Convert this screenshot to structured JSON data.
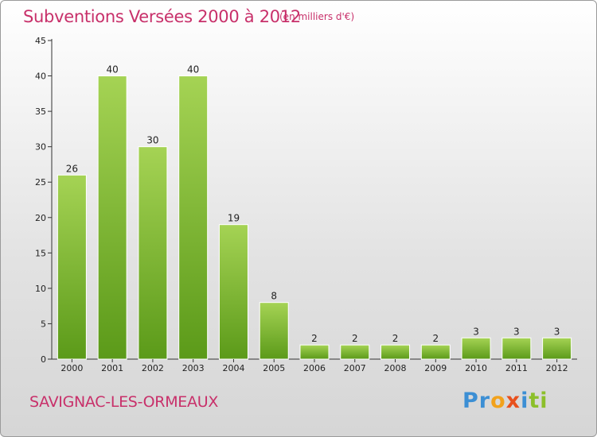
{
  "header": {
    "title": "Subventions Versées 2000 à 2012",
    "unit": "(en milliers d'€)"
  },
  "footer": {
    "commune": "SAVIGNAC-LES-ORMEAUX",
    "logo": [
      "Pr",
      "o",
      "x",
      "i",
      "ti"
    ]
  },
  "colors": {
    "title": "#c8306a",
    "bar_light": "#a5d354",
    "bar_dark": "#5b9a19",
    "axis": "#333333"
  },
  "chart_data": {
    "type": "bar",
    "title": "Subventions Versées 2000 à 2012",
    "subtitle": "(en milliers d'€)",
    "categories": [
      "2000",
      "2001",
      "2002",
      "2003",
      "2004",
      "2005",
      "2006",
      "2007",
      "2008",
      "2009",
      "2010",
      "2011",
      "2012"
    ],
    "values": [
      26,
      40,
      30,
      40,
      19,
      8,
      2,
      2,
      2,
      2,
      3,
      3,
      3
    ],
    "ylim": [
      0,
      45
    ],
    "yticks": [
      0,
      5,
      10,
      15,
      20,
      25,
      30,
      35,
      40,
      45
    ],
    "grid": false,
    "data_labels": true
  }
}
